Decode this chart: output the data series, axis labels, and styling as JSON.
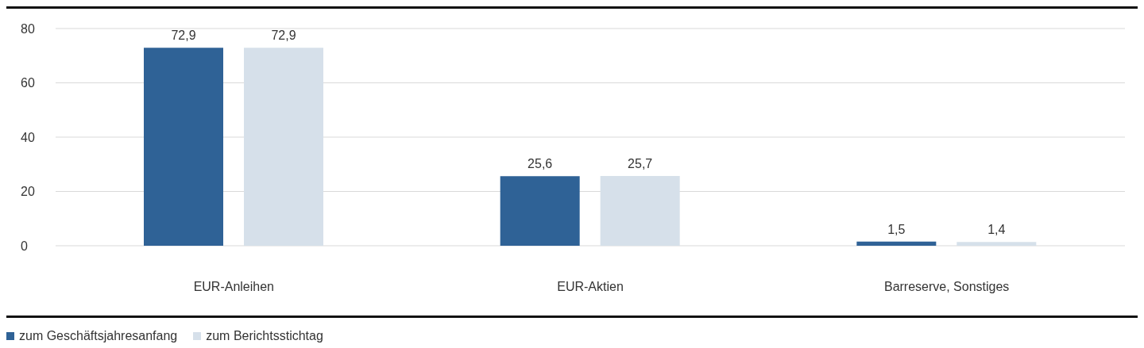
{
  "chart_data": {
    "type": "bar",
    "categories": [
      "EUR-Anleihen",
      "EUR-Aktien",
      "Barreserve, Sonstiges"
    ],
    "series": [
      {
        "name": "zum Geschäftsjahresanfang",
        "color": "#2f6296",
        "values": [
          72.9,
          25.6,
          1.5
        ],
        "value_labels": [
          "72,9",
          "25,6",
          "1,5"
        ]
      },
      {
        "name": "zum Berichtsstichtag",
        "color": "#d6e0ea",
        "values": [
          72.9,
          25.7,
          1.4
        ],
        "value_labels": [
          "72,9",
          "25,7",
          "1,4"
        ]
      }
    ],
    "ylim": [
      0,
      80
    ],
    "yticks": [
      0,
      20,
      40,
      60,
      80
    ],
    "grid": "y",
    "legend": "bottom left"
  }
}
